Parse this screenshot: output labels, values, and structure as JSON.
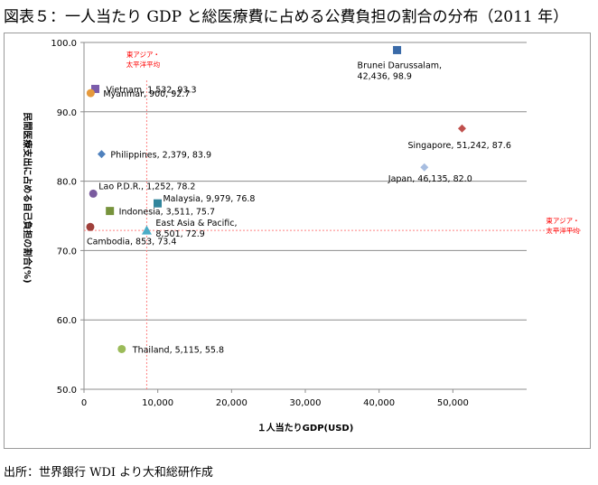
{
  "title": "図表５：一人当たり GDP と総医療費に占める公費負担の割合の分布（2011 年）",
  "source": "出所：世界銀行 WDI より大和総研作成",
  "colors": {
    "grid": "#8c8c8c",
    "axis": "#8c8c8c",
    "refline": "#ff8080",
    "reflabel": "#ff0000"
  },
  "chart_data": {
    "type": "scatter",
    "xlabel": "１人当たりGDP(USD)",
    "ylabel": "民間医療支出に占める自己負担の割合(%)",
    "xlim": [
      0,
      60000
    ],
    "ylim": [
      50,
      100
    ],
    "x_ticks": [
      0,
      10000,
      20000,
      30000,
      40000,
      50000
    ],
    "x_tick_labels": [
      "0",
      "10,000",
      "20,000",
      "30,000",
      "40,000",
      "50,000"
    ],
    "y_ticks": [
      50,
      60,
      70,
      80,
      90,
      100
    ],
    "y_tick_labels": [
      "50.0",
      "60.0",
      "70.0",
      "80.0",
      "90.0",
      "100.0"
    ],
    "grid": "horizontal",
    "reference": {
      "x": 8501,
      "y": 72.9,
      "label_vertical": "東アジア・\n太平洋平均",
      "label_horizontal": "東アジア・\n太平洋平均"
    },
    "points": [
      {
        "name": "Brunei Darussalam",
        "x": 42436,
        "y": 98.9,
        "label": "Brunei Darussalam,\n42,436,  98.9",
        "marker": "square",
        "color": "#3a6aa8"
      },
      {
        "name": "Vietnam",
        "x": 1532,
        "y": 93.3,
        "label": "Vietnam, 1,532,  93.3",
        "marker": "square",
        "color": "#7b5cab"
      },
      {
        "name": "Myanmar",
        "x": 900,
        "y": 92.7,
        "label": "Myanmar, 900,  92.7",
        "marker": "circle",
        "color": "#e69a3c"
      },
      {
        "name": "Singapore",
        "x": 51242,
        "y": 87.6,
        "label": "Singapore, 51,242,  87.6",
        "marker": "diamond",
        "color": "#c0504d"
      },
      {
        "name": "Philippines",
        "x": 2379,
        "y": 83.9,
        "label": "Philippines,  2,379,  83.9",
        "marker": "diamond",
        "color": "#4f81bd"
      },
      {
        "name": "Japan",
        "x": 46135,
        "y": 82.0,
        "label": "Japan, 46,135,  82.0",
        "marker": "diamond",
        "color": "#a7bde0"
      },
      {
        "name": "Lao P.D.R.",
        "x": 1252,
        "y": 78.2,
        "label": "Lao P.D.R., 1,252,  78.2",
        "marker": "circle",
        "color": "#7a5b9f"
      },
      {
        "name": "Malaysia",
        "x": 9979,
        "y": 76.8,
        "label": "Malaysia, 9,979,  76.8",
        "marker": "square",
        "color": "#31859c"
      },
      {
        "name": "Indonesia",
        "x": 3511,
        "y": 75.7,
        "label": "Indonesia, 3,511,  75.7",
        "marker": "square",
        "color": "#77933c"
      },
      {
        "name": "Cambodia",
        "x": 853,
        "y": 73.4,
        "label": "Cambodia, 853,  73.4",
        "marker": "circle",
        "color": "#a0403b"
      },
      {
        "name": "East Asia & Pacific",
        "x": 8501,
        "y": 72.9,
        "label": "East Asia & Pacific,\n8,501, 72.9",
        "marker": "triangle",
        "color": "#4bacc6"
      },
      {
        "name": "Thailand",
        "x": 5115,
        "y": 55.8,
        "label": "Thailand, 5,115,  55.8",
        "marker": "circle",
        "color": "#9bbb59"
      }
    ]
  }
}
